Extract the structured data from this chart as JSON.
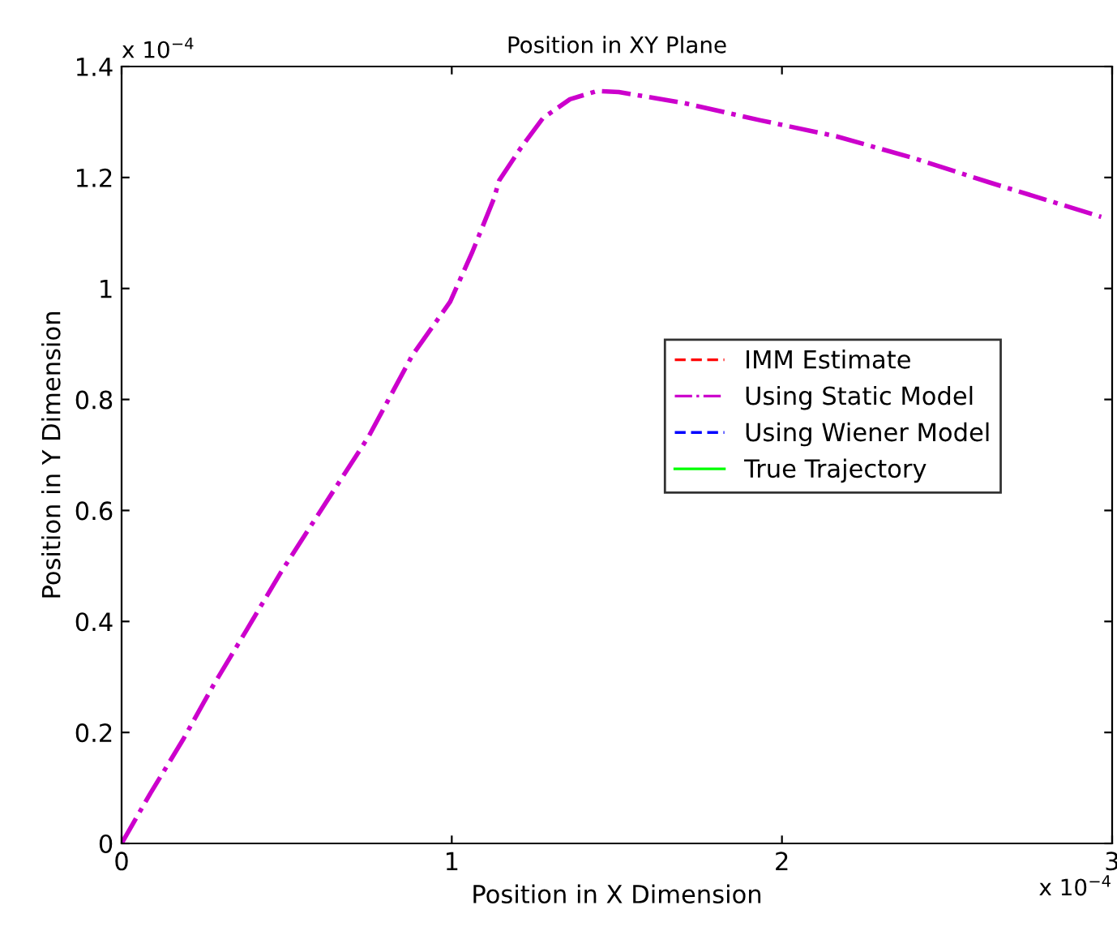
{
  "chart_data": {
    "type": "line",
    "title": "Position in XY Plane",
    "xlabel": "Position in X Dimension",
    "ylabel": "Position in Y Dimension",
    "x": [
      0,
      0.087,
      0.186,
      0.277,
      0.376,
      0.483,
      0.599,
      0.748,
      0.88,
      0.995,
      1.061,
      1.127,
      1.144,
      1.21,
      1.276,
      1.358,
      1.441,
      1.506,
      1.704,
      1.935,
      2.166,
      2.398,
      2.629,
      2.967
    ],
    "series": [
      {
        "name": "IMM Estimate",
        "color": "#ff0000",
        "line_style": "dashed",
        "values": [
          null,
          null,
          null,
          null,
          null,
          null,
          null,
          null,
          null,
          null,
          null,
          null,
          null,
          null,
          null,
          null,
          null,
          null,
          null,
          null,
          null,
          null,
          null,
          null
        ]
      },
      {
        "name": "Using Static Model",
        "color": "#cc00cc",
        "line_style": "dashdot",
        "values": [
          0,
          0.09,
          0.187,
          0.284,
          0.382,
          0.489,
          0.596,
          0.733,
          0.879,
          0.976,
          1.064,
          1.161,
          1.195,
          1.254,
          1.307,
          1.341,
          1.356,
          1.354,
          1.334,
          1.303,
          1.274,
          1.235,
          1.191,
          1.129
        ]
      },
      {
        "name": "Using Wiener Model",
        "color": "#0000ff",
        "line_style": "dashed",
        "values": [
          null,
          null,
          null,
          null,
          null,
          null,
          null,
          null,
          null,
          null,
          null,
          null,
          null,
          null,
          null,
          null,
          null,
          null,
          null,
          null,
          null,
          null,
          null,
          null
        ]
      },
      {
        "name": "True Trajectory",
        "color": "#00ff00",
        "line_style": "solid",
        "values": [
          null,
          null,
          null,
          null,
          null,
          null,
          null,
          null,
          null,
          null,
          null,
          null,
          null,
          null,
          null,
          null,
          null,
          null,
          null,
          null,
          null,
          null,
          null,
          null
        ]
      }
    ],
    "xlim": [
      0,
      3
    ],
    "xticks": [
      0,
      1,
      2,
      3
    ],
    "ylim": [
      0,
      1.4
    ],
    "yticks": [
      0,
      0.2,
      0.4,
      0.6,
      0.8,
      1,
      1.2,
      1.4
    ],
    "annotations": [
      "x 10$^{−4}$",
      "x 10$^{−4}$"
    ],
    "legend": "right",
    "grid": false,
    "marker": "none"
  }
}
